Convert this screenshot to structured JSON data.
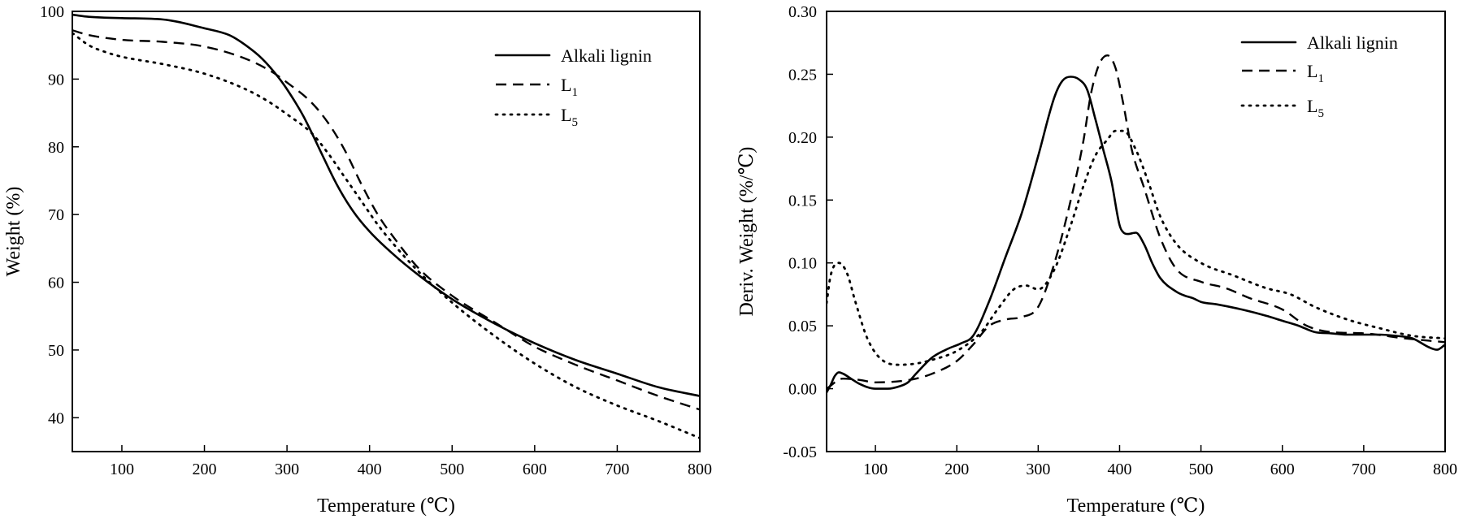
{
  "chart_data": [
    {
      "type": "line",
      "xlabel": "Temperature (℃)",
      "ylabel": "Weight (%)",
      "xlim": [
        40,
        800
      ],
      "ylim": [
        35,
        100
      ],
      "xticks": [
        100,
        200,
        300,
        400,
        500,
        600,
        700,
        800
      ],
      "yticks": [
        40,
        50,
        60,
        70,
        80,
        90,
        100
      ],
      "ytick_labels": [
        "40",
        "50",
        "60",
        "70",
        "80",
        "90",
        "100"
      ],
      "legend_position": "top-right",
      "series": [
        {
          "name": "Alkali lignin",
          "label_main": "Alkali lignin",
          "label_sub": "",
          "style": "solid",
          "x": [
            40,
            60,
            100,
            150,
            200,
            230,
            250,
            270,
            290,
            300,
            320,
            340,
            360,
            380,
            400,
            430,
            460,
            500,
            550,
            600,
            650,
            700,
            750,
            800
          ],
          "y": [
            99.5,
            99.2,
            99.0,
            98.8,
            97.5,
            96.5,
            95.0,
            93.0,
            90.2,
            88.5,
            84.5,
            79.5,
            74.5,
            70.5,
            67.5,
            64.0,
            61.0,
            57.5,
            54.0,
            51.0,
            48.5,
            46.5,
            44.5,
            43.2
          ]
        },
        {
          "name": "L1",
          "label_main": "L",
          "label_sub": "1",
          "style": "dashed",
          "x": [
            40,
            60,
            100,
            150,
            200,
            250,
            280,
            300,
            330,
            350,
            370,
            390,
            410,
            430,
            460,
            500,
            550,
            600,
            650,
            700,
            750,
            800
          ],
          "y": [
            97.2,
            96.5,
            95.8,
            95.5,
            94.8,
            93.0,
            91.2,
            89.5,
            86.5,
            83.5,
            79.5,
            74.5,
            70.0,
            66.5,
            62.0,
            58.0,
            54.2,
            50.5,
            47.8,
            45.5,
            43.2,
            41.2
          ]
        },
        {
          "name": "L5",
          "label_main": "L",
          "label_sub": "5",
          "style": "dotted",
          "x": [
            40,
            60,
            80,
            100,
            150,
            200,
            250,
            280,
            300,
            330,
            350,
            370,
            390,
            410,
            430,
            460,
            500,
            550,
            600,
            650,
            700,
            750,
            800
          ],
          "y": [
            96.8,
            95.0,
            94.0,
            93.3,
            92.2,
            90.8,
            88.5,
            86.5,
            84.8,
            82.0,
            79.0,
            75.5,
            72.0,
            68.5,
            65.5,
            61.5,
            57.0,
            52.2,
            48.0,
            44.5,
            41.8,
            39.5,
            37.0
          ]
        }
      ]
    },
    {
      "type": "line",
      "xlabel": "Temperature (℃)",
      "ylabel": "Deriv. Weight (%/℃)",
      "xlim": [
        40,
        800
      ],
      "ylim": [
        -0.05,
        0.3
      ],
      "xticks": [
        100,
        200,
        300,
        400,
        500,
        600,
        700,
        800
      ],
      "yticks": [
        -0.05,
        0.0,
        0.05,
        0.1,
        0.15,
        0.2,
        0.25,
        0.3
      ],
      "ytick_labels": [
        "-0.05",
        "0.00",
        "0.05",
        "0.10",
        "0.15",
        "0.20",
        "0.25",
        "0.30"
      ],
      "legend_position": "top-right",
      "series": [
        {
          "name": "Alkali lignin",
          "label_main": "Alkali lignin",
          "label_sub": "",
          "style": "solid",
          "x": [
            40,
            45,
            50,
            55,
            60,
            70,
            80,
            100,
            115,
            130,
            140,
            150,
            170,
            190,
            205,
            220,
            240,
            260,
            280,
            300,
            320,
            330,
            340,
            350,
            360,
            370,
            380,
            390,
            400,
            405,
            410,
            420,
            430,
            440,
            450,
            470,
            480,
            490,
            500,
            520,
            550,
            580,
            600,
            620,
            640,
            660,
            680,
            700,
            720,
            740,
            760,
            780,
            790,
            800
          ],
          "y": [
            -0.003,
            0.003,
            0.01,
            0.013,
            0.012,
            0.008,
            0.004,
            0.0,
            0.0,
            0.002,
            0.005,
            0.012,
            0.025,
            0.032,
            0.036,
            0.042,
            0.07,
            0.105,
            0.14,
            0.185,
            0.232,
            0.245,
            0.248,
            0.246,
            0.238,
            0.215,
            0.19,
            0.165,
            0.13,
            0.124,
            0.123,
            0.124,
            0.115,
            0.1,
            0.088,
            0.077,
            0.074,
            0.072,
            0.069,
            0.067,
            0.063,
            0.058,
            0.054,
            0.05,
            0.045,
            0.044,
            0.043,
            0.043,
            0.043,
            0.042,
            0.04,
            0.033,
            0.031,
            0.035
          ]
        },
        {
          "name": "L1",
          "label_main": "L",
          "label_sub": "1",
          "style": "dashed",
          "x": [
            40,
            60,
            80,
            100,
            130,
            150,
            170,
            200,
            220,
            240,
            260,
            280,
            300,
            320,
            340,
            355,
            365,
            375,
            385,
            395,
            405,
            415,
            430,
            450,
            470,
            500,
            530,
            560,
            600,
            630,
            660,
            700,
            750,
            800
          ],
          "y": [
            0.0,
            0.008,
            0.007,
            0.005,
            0.006,
            0.008,
            0.012,
            0.022,
            0.035,
            0.05,
            0.055,
            0.057,
            0.065,
            0.1,
            0.15,
            0.195,
            0.235,
            0.258,
            0.265,
            0.255,
            0.225,
            0.19,
            0.16,
            0.12,
            0.095,
            0.085,
            0.08,
            0.072,
            0.063,
            0.05,
            0.045,
            0.044,
            0.04,
            0.037
          ]
        },
        {
          "name": "L5",
          "label_main": "L",
          "label_sub": "5",
          "style": "dotted",
          "x": [
            40,
            45,
            55,
            65,
            75,
            90,
            110,
            130,
            150,
            170,
            200,
            230,
            250,
            270,
            285,
            300,
            320,
            340,
            355,
            370,
            385,
            395,
            405,
            420,
            435,
            450,
            470,
            500,
            540,
            580,
            610,
            640,
            680,
            720,
            760,
            800
          ],
          "y": [
            0.068,
            0.09,
            0.1,
            0.092,
            0.07,
            0.04,
            0.022,
            0.019,
            0.02,
            0.023,
            0.03,
            0.045,
            0.063,
            0.079,
            0.082,
            0.079,
            0.095,
            0.13,
            0.16,
            0.185,
            0.198,
            0.205,
            0.205,
            0.19,
            0.165,
            0.137,
            0.115,
            0.1,
            0.09,
            0.08,
            0.075,
            0.065,
            0.055,
            0.048,
            0.042,
            0.04
          ]
        }
      ]
    }
  ]
}
